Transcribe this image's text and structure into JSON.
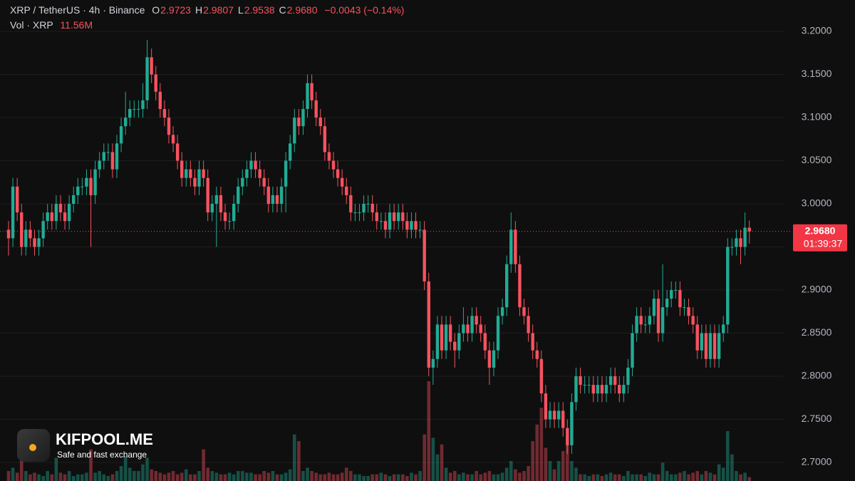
{
  "chart_data": {
    "type": "candlestick",
    "title": "XRP / TetherUS · 4h · Binance",
    "ohlc_legend": [
      {
        "key": "O",
        "label": "2.9723"
      },
      {
        "key": "H",
        "label": "2.9807"
      },
      {
        "key": "L",
        "label": "2.9538"
      },
      {
        "key": "C",
        "label": "2.9680"
      }
    ],
    "change_label": "−0.0043 (−0.14%)",
    "volume_title": "Vol · XRP",
    "volume_last_label": "11.56M",
    "last_price_label": "2.9680",
    "countdown": "01:39:37",
    "up_color": "#22ab94",
    "down_color": "#f7525f",
    "grid": true,
    "ylim": [
      2.6785,
      3.2364
    ],
    "yticks": [
      {
        "value": 3.2,
        "label": "3.2000"
      },
      {
        "value": 3.15,
        "label": "3.1500"
      },
      {
        "value": 3.1,
        "label": "3.1000"
      },
      {
        "value": 3.05,
        "label": "3.0500"
      },
      {
        "value": 3,
        "label": "3.0000"
      },
      {
        "value": 2.95,
        "label": "2.9500"
      },
      {
        "value": 2.9,
        "label": "2.9000"
      },
      {
        "value": 2.85,
        "label": "2.8500"
      },
      {
        "value": 2.8,
        "label": "2.8000"
      },
      {
        "value": 2.75,
        "label": "2.7500"
      },
      {
        "value": 2.7,
        "label": "2.7000"
      }
    ],
    "open": [
      2.97,
      2.96,
      3.02,
      2.99,
      2.95,
      2.97,
      2.96,
      2.95,
      2.96,
      2.98,
      2.99,
      2.98,
      3.0,
      2.99,
      2.98,
      3.0,
      3.01,
      3.02,
      3.02,
      3.03,
      3.01,
      3.04,
      3.05,
      3.06,
      3.06,
      3.04,
      3.07,
      3.09,
      3.1,
      3.11,
      3.11,
      3.11,
      3.12,
      3.17,
      3.15,
      3.13,
      3.11,
      3.1,
      3.08,
      3.07,
      3.05,
      3.03,
      3.04,
      3.03,
      3.02,
      3.04,
      3.03,
      2.99,
      3.0,
      3.01,
      2.99,
      2.98,
      2.98,
      3.0,
      3.02,
      3.03,
      3.04,
      3.05,
      3.04,
      3.03,
      3.02,
      3.0,
      3.01,
      3.0,
      3.02,
      3.05,
      3.07,
      3.1,
      3.09,
      3.11,
      3.14,
      3.12,
      3.1,
      3.09,
      3.06,
      3.05,
      3.04,
      3.03,
      3.02,
      3.01,
      2.99,
      2.99,
      2.99,
      3.0,
      3.0,
      2.99,
      2.98,
      2.98,
      2.97,
      2.99,
      2.98,
      2.99,
      2.98,
      2.97,
      2.98,
      2.97,
      2.97,
      2.91,
      2.81,
      2.82,
      2.86,
      2.83,
      2.86,
      2.84,
      2.83,
      2.85,
      2.86,
      2.85,
      2.87,
      2.86,
      2.85,
      2.83,
      2.81,
      2.83,
      2.87,
      2.88,
      2.93,
      2.97,
      2.93,
      2.88,
      2.87,
      2.85,
      2.83,
      2.82,
      2.78,
      2.75,
      2.76,
      2.75,
      2.76,
      2.74,
      2.72,
      2.77,
      2.8,
      2.79,
      2.79,
      2.79,
      2.78,
      2.79,
      2.78,
      2.79,
      2.8,
      2.79,
      2.78,
      2.79,
      2.81,
      2.85,
      2.87,
      2.86,
      2.86,
      2.87,
      2.89,
      2.85,
      2.88,
      2.89,
      2.9,
      2.9,
      2.88,
      2.88,
      2.87,
      2.86,
      2.83,
      2.85,
      2.82,
      2.85,
      2.82,
      2.85,
      2.86,
      2.95,
      2.95,
      2.96,
      2.95,
      2.9723
    ],
    "high": [
      2.98,
      3.03,
      3.03,
      3.0,
      2.98,
      2.98,
      2.97,
      2.97,
      2.99,
      3.0,
      3.0,
      3.01,
      3.01,
      3.0,
      3.01,
      3.02,
      3.03,
      3.03,
      3.04,
      3.04,
      3.05,
      3.06,
      3.07,
      3.07,
      3.07,
      3.08,
      3.1,
      3.13,
      3.12,
      3.12,
      3.12,
      3.14,
      3.19,
      3.18,
      3.16,
      3.14,
      3.12,
      3.11,
      3.09,
      3.08,
      3.06,
      3.05,
      3.05,
      3.04,
      3.05,
      3.05,
      3.04,
      3.01,
      3.02,
      3.02,
      3.0,
      2.99,
      3.01,
      3.03,
      3.04,
      3.05,
      3.06,
      3.06,
      3.05,
      3.04,
      3.03,
      3.02,
      3.02,
      3.03,
      3.06,
      3.08,
      3.11,
      3.11,
      3.12,
      3.15,
      3.15,
      3.13,
      3.11,
      3.1,
      3.07,
      3.06,
      3.05,
      3.04,
      3.03,
      3.02,
      3.0,
      3.0,
      3.01,
      3.01,
      3.01,
      3.0,
      2.99,
      2.99,
      3.0,
      3.0,
      3.0,
      3.0,
      2.99,
      2.99,
      2.99,
      2.98,
      2.98,
      2.92,
      2.83,
      2.87,
      2.87,
      2.87,
      2.87,
      2.85,
      2.86,
      2.88,
      2.87,
      2.88,
      2.88,
      2.87,
      2.86,
      2.84,
      2.84,
      2.88,
      2.89,
      2.94,
      2.99,
      2.98,
      2.94,
      2.89,
      2.88,
      2.86,
      2.84,
      2.83,
      2.79,
      2.77,
      2.77,
      2.77,
      2.77,
      2.75,
      2.78,
      2.81,
      2.81,
      2.8,
      2.8,
      2.8,
      2.8,
      2.8,
      2.8,
      2.81,
      2.81,
      2.8,
      2.8,
      2.82,
      2.86,
      2.88,
      2.88,
      2.87,
      2.88,
      2.9,
      2.9,
      2.93,
      2.9,
      2.91,
      2.91,
      2.91,
      2.89,
      2.89,
      2.88,
      2.87,
      2.86,
      2.86,
      2.86,
      2.86,
      2.86,
      2.87,
      2.96,
      2.96,
      2.97,
      2.97,
      2.99,
      2.9807
    ],
    "low": [
      2.94,
      2.95,
      2.98,
      2.94,
      2.94,
      2.95,
      2.94,
      2.94,
      2.95,
      2.97,
      2.97,
      2.97,
      2.98,
      2.97,
      2.97,
      2.99,
      3.0,
      3.01,
      3.01,
      2.95,
      3.0,
      3.03,
      3.04,
      3.05,
      3.03,
      3.03,
      3.06,
      3.08,
      3.09,
      3.1,
      3.1,
      3.1,
      3.11,
      3.14,
      3.12,
      3.1,
      3.09,
      3.07,
      3.06,
      3.04,
      3.02,
      3.02,
      3.02,
      3.01,
      3.01,
      3.02,
      2.98,
      2.98,
      2.95,
      2.98,
      2.97,
      2.97,
      2.97,
      2.99,
      3.01,
      3.02,
      3.03,
      3.03,
      3.02,
      3.01,
      2.99,
      2.99,
      2.99,
      2.99,
      2.99,
      3.04,
      3.06,
      3.08,
      3.08,
      3.1,
      3.11,
      3.09,
      3.08,
      3.05,
      3.04,
      3.03,
      3.02,
      3.01,
      3.0,
      2.98,
      2.98,
      2.98,
      2.98,
      2.99,
      2.98,
      2.97,
      2.97,
      2.96,
      2.96,
      2.97,
      2.97,
      2.97,
      2.96,
      2.96,
      2.96,
      2.96,
      2.9,
      2.8,
      2.79,
      2.81,
      2.82,
      2.82,
      2.83,
      2.81,
      2.82,
      2.84,
      2.84,
      2.84,
      2.85,
      2.84,
      2.82,
      2.79,
      2.8,
      2.82,
      2.86,
      2.87,
      2.92,
      2.92,
      2.87,
      2.86,
      2.84,
      2.82,
      2.81,
      2.77,
      2.74,
      2.74,
      2.74,
      2.74,
      2.73,
      2.71,
      2.71,
      2.76,
      2.78,
      2.78,
      2.78,
      2.77,
      2.77,
      2.77,
      2.77,
      2.78,
      2.78,
      2.77,
      2.77,
      2.78,
      2.8,
      2.84,
      2.85,
      2.85,
      2.85,
      2.86,
      2.84,
      2.84,
      2.87,
      2.88,
      2.89,
      2.87,
      2.87,
      2.86,
      2.85,
      2.82,
      2.82,
      2.81,
      2.81,
      2.81,
      2.81,
      2.84,
      2.85,
      2.94,
      2.94,
      2.93,
      2.94,
      2.9538
    ],
    "close": [
      2.96,
      3.02,
      2.99,
      2.95,
      2.97,
      2.96,
      2.95,
      2.96,
      2.98,
      2.99,
      2.98,
      3.0,
      2.99,
      2.98,
      3.0,
      3.01,
      3.02,
      3.02,
      3.03,
      3.01,
      3.04,
      3.05,
      3.06,
      3.06,
      3.04,
      3.07,
      3.09,
      3.1,
      3.11,
      3.11,
      3.11,
      3.12,
      3.17,
      3.15,
      3.13,
      3.11,
      3.1,
      3.08,
      3.07,
      3.05,
      3.03,
      3.04,
      3.03,
      3.02,
      3.04,
      3.03,
      2.99,
      3.0,
      3.01,
      2.99,
      2.98,
      2.98,
      3.0,
      3.02,
      3.03,
      3.04,
      3.05,
      3.04,
      3.03,
      3.02,
      3.0,
      3.01,
      3.0,
      3.02,
      3.05,
      3.07,
      3.1,
      3.09,
      3.11,
      3.14,
      3.12,
      3.1,
      3.09,
      3.06,
      3.05,
      3.04,
      3.03,
      3.02,
      3.01,
      2.99,
      2.99,
      2.99,
      3.0,
      3.0,
      2.99,
      2.98,
      2.98,
      2.97,
      2.99,
      2.98,
      2.99,
      2.98,
      2.97,
      2.98,
      2.97,
      2.97,
      2.91,
      2.81,
      2.82,
      2.86,
      2.83,
      2.86,
      2.84,
      2.83,
      2.85,
      2.86,
      2.85,
      2.87,
      2.86,
      2.85,
      2.83,
      2.81,
      2.83,
      2.87,
      2.88,
      2.93,
      2.97,
      2.93,
      2.88,
      2.87,
      2.85,
      2.83,
      2.82,
      2.78,
      2.75,
      2.76,
      2.75,
      2.76,
      2.74,
      2.72,
      2.77,
      2.8,
      2.79,
      2.79,
      2.79,
      2.78,
      2.79,
      2.78,
      2.79,
      2.8,
      2.79,
      2.78,
      2.79,
      2.81,
      2.85,
      2.87,
      2.86,
      2.86,
      2.87,
      2.89,
      2.85,
      2.88,
      2.89,
      2.9,
      2.9,
      2.88,
      2.88,
      2.87,
      2.86,
      2.83,
      2.85,
      2.82,
      2.85,
      2.82,
      2.85,
      2.86,
      2.95,
      2.95,
      2.96,
      2.95,
      2.9723,
      2.968
    ],
    "volume": [
      30,
      40,
      25,
      75,
      30,
      20,
      25,
      20,
      15,
      30,
      20,
      70,
      25,
      20,
      30,
      15,
      20,
      20,
      25,
      95,
      25,
      30,
      20,
      15,
      20,
      30,
      45,
      75,
      40,
      30,
      30,
      50,
      70,
      35,
      30,
      25,
      20,
      25,
      30,
      20,
      25,
      35,
      20,
      20,
      30,
      95,
      40,
      30,
      25,
      20,
      20,
      25,
      20,
      30,
      30,
      25,
      25,
      20,
      20,
      30,
      25,
      30,
      20,
      20,
      25,
      35,
      140,
      120,
      30,
      40,
      30,
      25,
      20,
      20,
      25,
      20,
      20,
      25,
      40,
      30,
      20,
      20,
      15,
      15,
      20,
      20,
      25,
      20,
      15,
      20,
      20,
      20,
      15,
      25,
      20,
      30,
      140,
      300,
      130,
      80,
      110,
      40,
      25,
      30,
      20,
      25,
      20,
      20,
      30,
      20,
      25,
      30,
      20,
      20,
      25,
      40,
      60,
      35,
      25,
      30,
      45,
      120,
      170,
      220,
      100,
      60,
      35,
      60,
      90,
      110,
      60,
      40,
      20,
      20,
      15,
      20,
      20,
      15,
      20,
      25,
      20,
      20,
      15,
      30,
      20,
      20,
      20,
      15,
      25,
      20,
      20,
      55,
      30,
      20,
      20,
      25,
      30,
      20,
      25,
      30,
      20,
      30,
      25,
      20,
      50,
      40,
      150,
      80,
      30,
      20,
      25,
      11.56
    ]
  },
  "watermark": {
    "name": "KIFPOOL.ME",
    "tagline": "Safe and fast exchange"
  }
}
